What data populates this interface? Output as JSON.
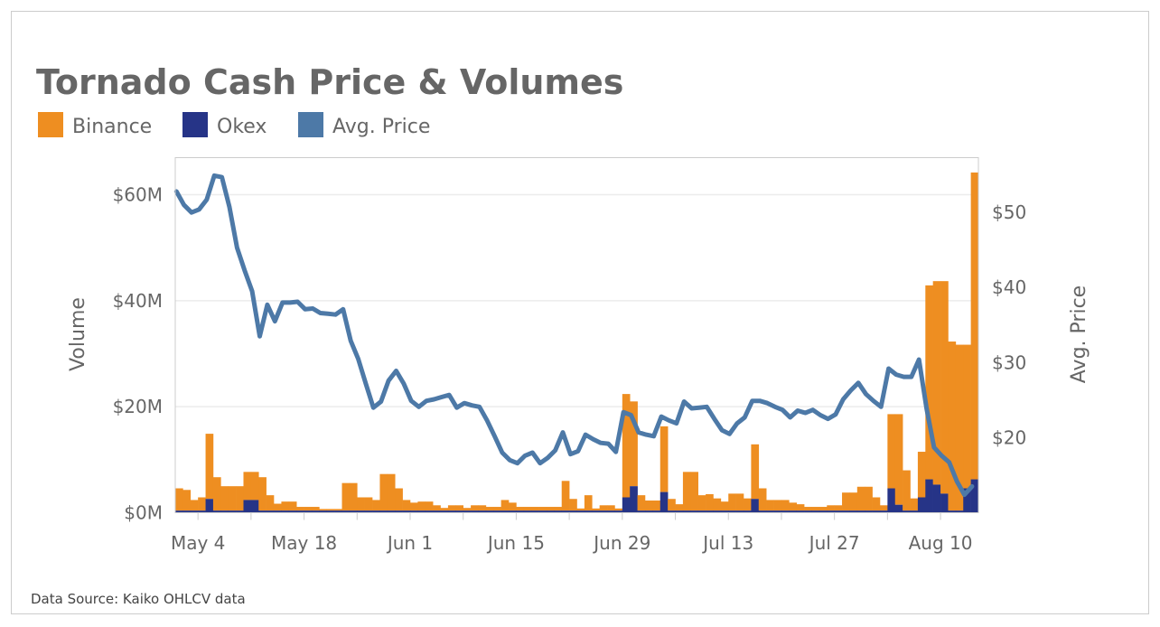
{
  "chart_data": {
    "type": "bar+line",
    "title": "Tornado Cash Price & Volumes",
    "source": "Data Source: Kaiko OHLCV data",
    "legend": {
      "placement": "top-left",
      "entries": [
        "Binance",
        "Okex",
        "Avg. Price"
      ]
    },
    "colors": {
      "binance": "#EE8E21",
      "okex": "#263487",
      "price": "#4D79A7"
    },
    "ylabel_left": "Volume",
    "ylabel_right": "Avg. Price",
    "ylim_left": [
      0,
      67
    ],
    "ylim_right": [
      10,
      57.3
    ],
    "yticks_left": [
      "$0M",
      "$20M",
      "$40M",
      "$60M"
    ],
    "yticks_left_values": [
      0,
      20,
      40,
      60
    ],
    "yticks_right": [
      "$20",
      "$30",
      "$40",
      "$50"
    ],
    "yticks_right_values": [
      20,
      30,
      40,
      50
    ],
    "xticks": [
      "May 4",
      "May 18",
      "Jun 1",
      "Jun 15",
      "Jun 29",
      "Jul 13",
      "Jul 27",
      "Aug 10"
    ],
    "grid": true,
    "x": [
      "May 1",
      "May 2",
      "May 3",
      "May 4",
      "May 5",
      "May 6",
      "May 7",
      "May 8",
      "May 9",
      "May 10",
      "May 11",
      "May 12",
      "May 13",
      "May 14",
      "May 15",
      "May 16",
      "May 17",
      "May 18",
      "May 19",
      "May 20",
      "May 21",
      "May 22",
      "May 23",
      "May 24",
      "May 25",
      "May 26",
      "May 27",
      "May 28",
      "May 29",
      "May 30",
      "May 31",
      "Jun 1",
      "Jun 2",
      "Jun 3",
      "Jun 4",
      "Jun 5",
      "Jun 6",
      "Jun 7",
      "Jun 8",
      "Jun 9",
      "Jun 10",
      "Jun 11",
      "Jun 12",
      "Jun 13",
      "Jun 14",
      "Jun 15",
      "Jun 16",
      "Jun 17",
      "Jun 18",
      "Jun 19",
      "Jun 20",
      "Jun 21",
      "Jun 22",
      "Jun 23",
      "Jun 24",
      "Jun 25",
      "Jun 26",
      "Jun 27",
      "Jun 28",
      "Jun 29",
      "Jun 30",
      "Jul 1",
      "Jul 2",
      "Jul 3",
      "Jul 4",
      "Jul 5",
      "Jul 6",
      "Jul 7",
      "Jul 8",
      "Jul 9",
      "Jul 10",
      "Jul 11",
      "Jul 12",
      "Jul 13",
      "Jul 14",
      "Jul 15",
      "Jul 16",
      "Jul 17",
      "Jul 18",
      "Jul 19",
      "Jul 20",
      "Jul 21",
      "Jul 22",
      "Jul 23",
      "Jul 24",
      "Jul 25",
      "Jul 26",
      "Jul 27",
      "Jul 28",
      "Jul 29",
      "Jul 30",
      "Jul 31",
      "Aug 1",
      "Aug 2",
      "Aug 3",
      "Aug 4",
      "Aug 5",
      "Aug 6",
      "Aug 7",
      "Aug 8",
      "Aug 9",
      "Aug 10",
      "Aug 11",
      "Aug 12",
      "Aug 13",
      "Aug 14"
    ],
    "series": [
      {
        "name": "Binance",
        "type": "stacked-bar",
        "unit": "$M",
        "values": [
          4.2,
          3.9,
          2.0,
          2.5,
          12.3,
          6.3,
          4.6,
          4.6,
          4.6,
          5.3,
          5.3,
          6.3,
          2.9,
          1.3,
          1.7,
          1.7,
          0.7,
          0.7,
          0.7,
          0.3,
          0.3,
          0.3,
          5.2,
          5.2,
          2.5,
          2.5,
          2.0,
          6.9,
          6.9,
          4.2,
          2.0,
          1.5,
          1.7,
          1.7,
          1.0,
          0.5,
          1.0,
          1.0,
          0.5,
          1.0,
          1.0,
          0.7,
          0.7,
          2.0,
          1.5,
          0.7,
          0.7,
          0.7,
          0.7,
          0.7,
          0.7,
          5.6,
          2.2,
          0.4,
          2.9,
          0.4,
          1.0,
          1.0,
          0.4,
          19.5,
          16.0,
          2.9,
          1.9,
          1.9,
          12.4,
          2.2,
          1.2,
          7.3,
          7.3,
          2.9,
          3.1,
          2.3,
          1.7,
          3.2,
          3.2,
          2.3,
          10.3,
          4.2,
          2.0,
          2.0,
          2.0,
          1.5,
          1.2,
          0.7,
          0.7,
          0.7,
          1.0,
          1.0,
          3.4,
          3.4,
          4.5,
          4.5,
          2.5,
          1.0,
          14.0,
          17.1,
          7.6,
          2.3,
          8.6,
          36.6,
          38.4,
          40.1,
          31.9,
          31.3,
          27.1,
          57.9
        ]
      },
      {
        "name": "Okex",
        "type": "stacked-bar",
        "unit": "$M",
        "values": [
          0.4,
          0.4,
          0.4,
          0.4,
          2.6,
          0.4,
          0.4,
          0.4,
          0.4,
          2.4,
          2.4,
          0.4,
          0.4,
          0.4,
          0.4,
          0.4,
          0.4,
          0.4,
          0.4,
          0.4,
          0.4,
          0.4,
          0.4,
          0.4,
          0.4,
          0.4,
          0.4,
          0.4,
          0.4,
          0.4,
          0.4,
          0.4,
          0.4,
          0.4,
          0.4,
          0.4,
          0.4,
          0.4,
          0.4,
          0.4,
          0.4,
          0.4,
          0.4,
          0.4,
          0.4,
          0.4,
          0.4,
          0.4,
          0.4,
          0.4,
          0.4,
          0.4,
          0.4,
          0.4,
          0.4,
          0.4,
          0.4,
          0.4,
          0.4,
          2.9,
          5.0,
          0.4,
          0.4,
          0.4,
          3.9,
          0.4,
          0.4,
          0.4,
          0.4,
          0.4,
          0.4,
          0.4,
          0.4,
          0.4,
          0.4,
          0.4,
          2.6,
          0.4,
          0.4,
          0.4,
          0.4,
          0.4,
          0.4,
          0.4,
          0.4,
          0.4,
          0.4,
          0.4,
          0.4,
          0.4,
          0.4,
          0.4,
          0.4,
          0.4,
          4.6,
          1.5,
          0.4,
          0.4,
          2.9,
          6.3,
          5.3,
          3.6,
          0.4,
          0.4,
          4.6,
          6.3
        ]
      },
      {
        "name": "Avg. Price",
        "type": "line",
        "unit": "$",
        "values": [
          52.8,
          51.0,
          50.0,
          50.4,
          51.7,
          54.9,
          54.7,
          50.7,
          45.3,
          42.3,
          39.5,
          33.5,
          37.7,
          35.5,
          38.0,
          38.0,
          38.1,
          37.1,
          37.2,
          36.6,
          36.5,
          36.4,
          37.1,
          32.9,
          30.5,
          27.2,
          24.0,
          24.8,
          27.6,
          28.9,
          27.2,
          24.9,
          24.1,
          24.9,
          25.1,
          25.4,
          25.7,
          24.0,
          24.6,
          24.3,
          24.1,
          22.3,
          20.2,
          18.0,
          17.0,
          16.6,
          17.6,
          18.0,
          16.6,
          17.3,
          18.3,
          20.7,
          17.8,
          18.2,
          20.4,
          19.8,
          19.3,
          19.2,
          18.1,
          23.4,
          23.0,
          20.7,
          20.4,
          20.2,
          22.8,
          22.3,
          21.9,
          24.8,
          23.9,
          24.0,
          24.1,
          22.5,
          21.0,
          20.5,
          21.9,
          22.7,
          24.9,
          24.9,
          24.6,
          24.1,
          23.7,
          22.7,
          23.6,
          23.3,
          23.7,
          23.0,
          22.5,
          23.1,
          25.1,
          26.3,
          27.3,
          25.8,
          24.9,
          24.1,
          29.2,
          28.4,
          28.1,
          28.1,
          30.4,
          23.9,
          18.7,
          17.6,
          16.7,
          14.2,
          12.4,
          13.5
        ]
      }
    ]
  }
}
